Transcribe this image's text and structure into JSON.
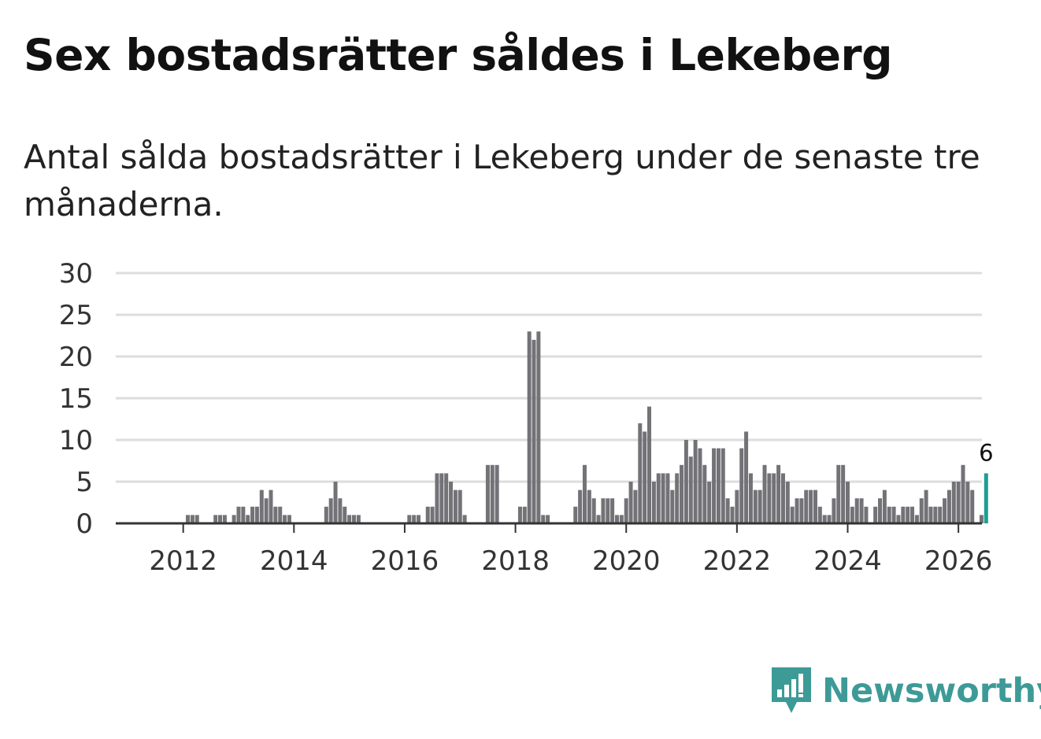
{
  "title": "Sex bostadsrätter såldes i Lekeberg",
  "subtitle": "Antal sålda bostadsrätter i Lekeberg under de senaste tre månaderna.",
  "brand": {
    "name": "Newsworthy",
    "color": "#3d9a97",
    "icon": "newsworthy-logo-icon"
  },
  "colors": {
    "bar": "#737277",
    "highlight": "#1f9e93",
    "grid": "#dddddd",
    "axis": "#333333"
  },
  "chart_data": {
    "type": "bar",
    "title": "Sex bostadsrätter såldes i Lekeberg",
    "xlabel": "",
    "ylabel": "",
    "ylim": [
      0,
      30
    ],
    "yticks": [
      0,
      5,
      10,
      15,
      20,
      25,
      30
    ],
    "xticks": [
      "2012",
      "2014",
      "2016",
      "2018",
      "2020",
      "2022",
      "2024",
      "2026"
    ],
    "x_start": {
      "year": 2011,
      "month": 7
    },
    "grid": true,
    "legend": "none",
    "highlight_label": "6",
    "values": [
      0,
      0,
      0,
      0,
      0,
      0,
      0,
      1,
      1,
      1,
      0,
      0,
      0,
      1,
      1,
      1,
      0,
      1,
      2,
      2,
      1,
      2,
      2,
      4,
      3,
      4,
      2,
      2,
      1,
      1,
      0,
      0,
      0,
      0,
      0,
      0,
      0,
      2,
      3,
      5,
      3,
      2,
      1,
      1,
      1,
      0,
      0,
      0,
      0,
      0,
      0,
      0,
      0,
      0,
      0,
      1,
      1,
      1,
      0,
      2,
      2,
      6,
      6,
      6,
      5,
      4,
      4,
      1,
      0,
      0,
      0,
      0,
      7,
      7,
      7,
      0,
      0,
      0,
      0,
      2,
      2,
      23,
      22,
      23,
      1,
      1,
      0,
      0,
      0,
      0,
      0,
      2,
      4,
      7,
      4,
      3,
      1,
      3,
      3,
      3,
      1,
      1,
      3,
      5,
      4,
      12,
      11,
      14,
      5,
      6,
      6,
      6,
      4,
      6,
      7,
      10,
      8,
      10,
      9,
      7,
      5,
      9,
      9,
      9,
      3,
      2,
      4,
      9,
      11,
      6,
      4,
      4,
      7,
      6,
      6,
      7,
      6,
      5,
      2,
      3,
      3,
      4,
      4,
      4,
      2,
      1,
      1,
      3,
      7,
      7,
      5,
      2,
      3,
      3,
      2,
      0,
      2,
      3,
      4,
      2,
      2,
      1,
      2,
      2,
      2,
      1,
      3,
      4,
      2,
      2,
      2,
      3,
      4,
      5,
      5,
      7,
      5,
      4,
      0,
      1,
      6
    ]
  }
}
